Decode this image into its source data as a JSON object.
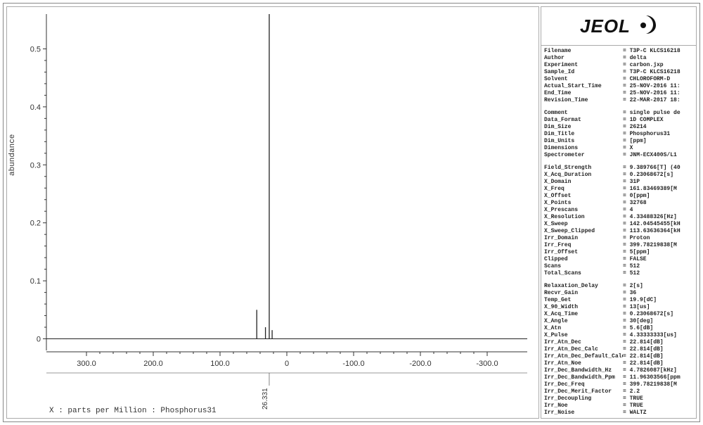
{
  "logo": {
    "text": "JEOL"
  },
  "chart": {
    "type": "nmr-spectrum",
    "y_label": "abundance",
    "x_label": "X : parts per Million : Phosphorus31",
    "x_axis": {
      "min": -360,
      "max": 360,
      "ticks": [
        300.0,
        200.0,
        100.0,
        0.0,
        -100.0,
        -200.0,
        -300.0
      ],
      "tick_labels": [
        "300.0",
        "200.0",
        "100.0",
        "0",
        "-100.0",
        "-200.0",
        "-300.0"
      ]
    },
    "y_axis": {
      "min": -0.02,
      "max": 0.56,
      "ticks": [
        0,
        0.1,
        0.2,
        0.3,
        0.4,
        0.5
      ],
      "tick_labels": [
        "0",
        "0.1",
        "0.2",
        "0.3",
        "0.4",
        "0.5"
      ]
    },
    "baseline_y": 0,
    "peaks": [
      {
        "x": 26.331,
        "height": 0.56,
        "label": "26.331"
      },
      {
        "x": 45.0,
        "height": 0.05
      },
      {
        "x": 32.0,
        "height": 0.02
      },
      {
        "x": 22.0,
        "height": 0.015
      }
    ],
    "colors": {
      "axis": "#333333",
      "tick": "#333333",
      "spectrum": "#222222",
      "background": "#ffffff"
    },
    "fontsize_ticks": 11
  },
  "metadata": {
    "group1": [
      {
        "k": "Filename",
        "v": "= T3P-C KLCS16218"
      },
      {
        "k": "Author",
        "v": "= delta"
      },
      {
        "k": "Experiment",
        "v": "= carbon.jxp"
      },
      {
        "k": "Sample_Id",
        "v": "= T3P-C KLCS16218"
      },
      {
        "k": "Solvent",
        "v": "= CHLOROFORM-D"
      },
      {
        "k": "Actual_Start_Time",
        "v": "= 25-NOV-2016 11:"
      },
      {
        "k": "End_Time",
        "v": "= 25-NOV-2016 11:"
      },
      {
        "k": "Revision_Time",
        "v": "= 22-MAR-2017 18:"
      }
    ],
    "group2": [
      {
        "k": "Comment",
        "v": "= single pulse de"
      },
      {
        "k": "Data_Format",
        "v": "= 1D COMPLEX"
      },
      {
        "k": "Dim_Size",
        "v": "= 26214"
      },
      {
        "k": "Dim_Title",
        "v": "= Phosphorus31"
      },
      {
        "k": "Dim_Units",
        "v": "= [ppm]"
      },
      {
        "k": "Dimensions",
        "v": "= X"
      },
      {
        "k": "Spectrometer",
        "v": "= JNM-ECX400S/L1"
      }
    ],
    "group3": [
      {
        "k": "Field_Strength",
        "v": "= 9.389766[T] (40"
      },
      {
        "k": "X_Acq_Duration",
        "v": "= 0.23068672[s]"
      },
      {
        "k": "X_Domain",
        "v": "= 31P"
      },
      {
        "k": "X_Freq",
        "v": "= 161.83469389[M"
      },
      {
        "k": "X_Offset",
        "v": "= 0[ppm]"
      },
      {
        "k": "X_Points",
        "v": "= 32768"
      },
      {
        "k": "X_Prescans",
        "v": "= 4"
      },
      {
        "k": "X_Resolution",
        "v": "= 4.33488326[Hz]"
      },
      {
        "k": "X_Sweep",
        "v": "= 142.04545455[kH"
      },
      {
        "k": "X_Sweep_Clipped",
        "v": "= 113.63636364[kH"
      },
      {
        "k": "Irr_Domain",
        "v": "= Proton"
      },
      {
        "k": "Irr_Freq",
        "v": "= 399.78219838[M"
      },
      {
        "k": "Irr_Offset",
        "v": "= 5[ppm]"
      },
      {
        "k": "Clipped",
        "v": "= FALSE"
      },
      {
        "k": "Scans",
        "v": "= 512"
      },
      {
        "k": "Total_Scans",
        "v": "= 512"
      }
    ],
    "group4": [
      {
        "k": "Relaxation_Delay",
        "v": "= 2[s]"
      },
      {
        "k": "Recvr_Gain",
        "v": "= 36"
      },
      {
        "k": "Temp_Get",
        "v": "= 19.9[dC]"
      },
      {
        "k": "X_90_Width",
        "v": "= 13[us]"
      },
      {
        "k": "X_Acq_Time",
        "v": "= 0.23068672[s]"
      },
      {
        "k": "X_Angle",
        "v": "= 30[deg]"
      },
      {
        "k": "X_Atn",
        "v": "= 5.6[dB]"
      },
      {
        "k": "X_Pulse",
        "v": "= 4.33333333[us]"
      },
      {
        "k": "Irr_Atn_Dec",
        "v": "= 22.814[dB]"
      },
      {
        "k": "Irr_Atn_Dec_Calc",
        "v": "= 22.814[dB]"
      },
      {
        "k": "Irr_Atn_Dec_Default_Calc",
        "v": "= 22.814[dB]"
      },
      {
        "k": "Irr_Atn_Noe",
        "v": "= 22.814[dB]"
      },
      {
        "k": "Irr_Dec_Bandwidth_Hz",
        "v": "= 4.7826087[kHz]"
      },
      {
        "k": "Irr_Dec_Bandwidth_Ppm",
        "v": "= 11.96303566[ppm"
      },
      {
        "k": "Irr_Dec_Freq",
        "v": "= 399.78219838[M"
      },
      {
        "k": "Irr_Dec_Merit_Factor",
        "v": "= 2.2"
      },
      {
        "k": "Irr_Decoupling",
        "v": "= TRUE"
      },
      {
        "k": "Irr_Noe",
        "v": "= TRUE"
      },
      {
        "k": "Irr_Noise",
        "v": "= WALTZ"
      }
    ]
  }
}
